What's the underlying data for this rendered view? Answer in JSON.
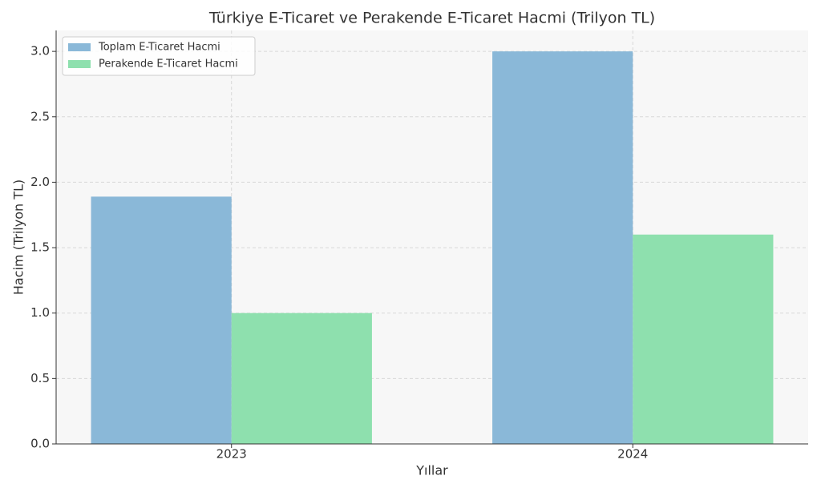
{
  "chart_data": {
    "type": "bar",
    "title": "Türkiye E-Ticaret ve Perakende E-Ticaret Hacmi (Trilyon TL)",
    "x_label": "Yıllar",
    "y_label": "Hacim (Trilyon TL)",
    "categories": [
      "2023",
      "2024"
    ],
    "series": [
      {
        "name": "Toplam E-Ticaret Hacmi",
        "color": "#8ab8d8",
        "values": [
          1.89,
          3.0
        ]
      },
      {
        "name": "Perakende E-Ticaret Hacmi",
        "color": "#8ee0ae",
        "values": [
          1.0,
          1.6
        ]
      }
    ],
    "ylim": [
      0,
      3.16
    ],
    "yticks": [
      {
        "value": 0,
        "label": "0.0"
      },
      {
        "value": 0.5,
        "label": "0.5"
      },
      {
        "value": 1,
        "label": "1.0"
      },
      {
        "value": 1.5,
        "label": "1.5"
      },
      {
        "value": 2,
        "label": "2.0"
      },
      {
        "value": 2.5,
        "label": "2.5"
      },
      {
        "value": 3,
        "label": "3.0"
      }
    ],
    "grid": true,
    "legend": "upper-left"
  }
}
